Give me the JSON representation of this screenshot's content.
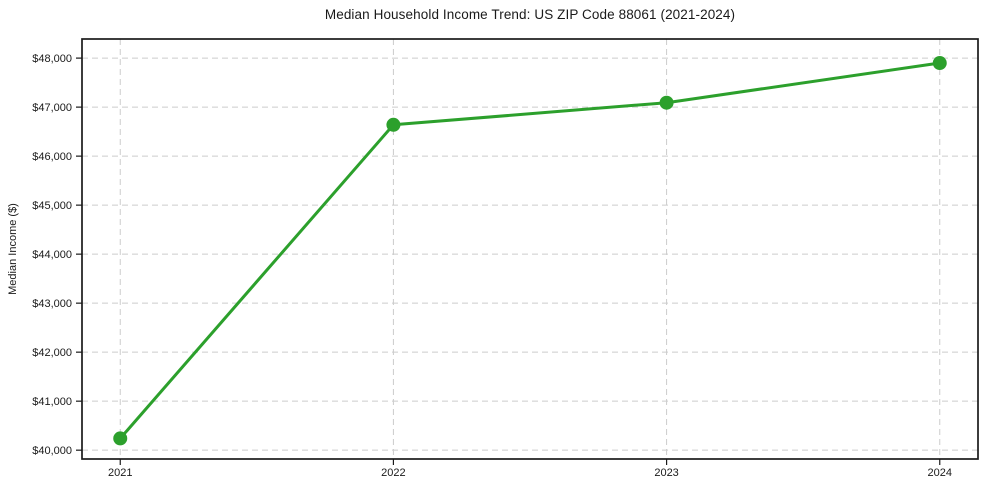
{
  "chart_data": {
    "type": "line",
    "title": "Median Household Income Trend: US ZIP Code 88061 (2021-2024)",
    "xlabel": "",
    "ylabel": "Median Income ($)",
    "categories": [
      "2021",
      "2022",
      "2023",
      "2024"
    ],
    "x": [
      2021,
      2022,
      2023,
      2024
    ],
    "values": [
      40240,
      46640,
      47090,
      47900
    ],
    "xlim": [
      2020.86,
      2024.14
    ],
    "ylim": [
      39820,
      48390
    ],
    "y_tick_values": [
      40000,
      41000,
      42000,
      43000,
      44000,
      45000,
      46000,
      47000,
      48000
    ],
    "y_tick_labels": [
      "$40,000",
      "$41,000",
      "$42,000",
      "$43,000",
      "$44,000",
      "$45,000",
      "$46,000",
      "$47,000",
      "$48,000"
    ],
    "grid": true,
    "grid_line_style": "dashed",
    "legend_position": "none",
    "line_color": "#2ca02c",
    "marker": "circle",
    "marker_radius": 7,
    "line_width": 3,
    "grid_color": "#cccccc",
    "axis_color": "#1a1a1a",
    "tick_text_color": "#1a1a1a",
    "background_color": "#ffffff"
  }
}
